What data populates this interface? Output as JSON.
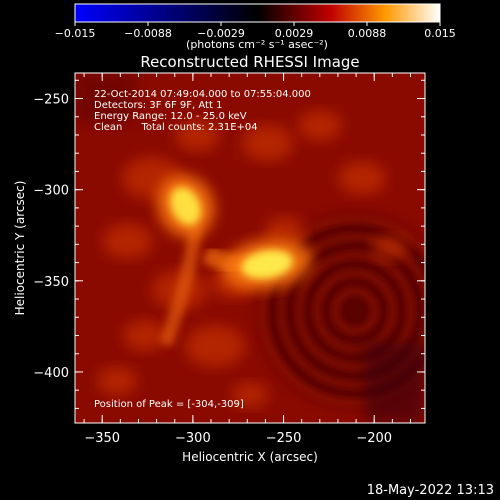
{
  "colorbar": {
    "ticks": [
      "-0.015",
      "-0.0088",
      "-0.0029",
      "0.0029",
      "0.0088",
      "0.015"
    ],
    "units": "(photons cm⁻² s⁻¹ asec⁻²)",
    "colors": [
      "#0000ff",
      "#000000",
      "#c00000",
      "#ff9900",
      "#ffffff"
    ]
  },
  "plot": {
    "title": "Reconstructed RHESSI Image",
    "info_lines": [
      "22-Oct-2014 07:49:04.000 to 07:55:04.000",
      "Detectors: 3F 6F 9F, Att 1",
      "Energy Range: 12.0 - 25.0 keV",
      "Clean      Total counts: 2.31E+04"
    ],
    "peak_text": "Position of Peak = [-304,-309]"
  },
  "footer": {
    "timestamp": "18-May-2022 13:13"
  },
  "chart_data": {
    "type": "heatmap",
    "title": "Reconstructed RHESSI Image",
    "xlabel": "Heliocentric X (arcsec)",
    "ylabel": "Heliocentric Y (arcsec)",
    "xlim": [
      -365,
      -172
    ],
    "ylim": [
      -428,
      -236
    ],
    "x_ticks": [
      -350,
      -300,
      -250,
      -200
    ],
    "y_ticks": [
      -250,
      -300,
      -350,
      -400
    ],
    "x_tick_labels": [
      "−350",
      "−300",
      "−250",
      "−200"
    ],
    "y_tick_labels": [
      "−250",
      "−300",
      "−350",
      "−400"
    ],
    "colormap": "hot",
    "sources": [
      {
        "x": -304,
        "y": -309,
        "intensity": 1.0
      },
      {
        "x": -259,
        "y": -341,
        "intensity": 0.92
      }
    ],
    "peak": [
      -304,
      -309
    ]
  }
}
